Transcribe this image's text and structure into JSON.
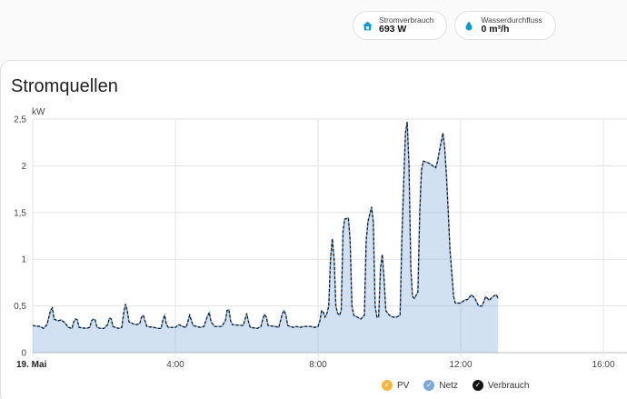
{
  "badges": [
    {
      "name": "Stromverbrauch",
      "value": "693 W",
      "icon": "home-icon",
      "color": "#0d9bd8"
    },
    {
      "name": "Wasserdurchfluss",
      "value": "0 m³/h",
      "icon": "water-drop-icon",
      "color": "#0d9bd8"
    }
  ],
  "card": {
    "title": "Stromquellen"
  },
  "legend": [
    {
      "label": "PV",
      "color": "#f5b83d"
    },
    {
      "label": "Netz",
      "color": "#7ca8d6"
    },
    {
      "label": "Verbrauch",
      "color": "#141414"
    }
  ],
  "chart_data": {
    "type": "area",
    "ylabel": "kW",
    "ylim": [
      0,
      2.5
    ],
    "xlim": [
      0,
      16.5
    ],
    "y_ticks": [
      {
        "v": 0,
        "label": "0"
      },
      {
        "v": 0.5,
        "label": "0,5"
      },
      {
        "v": 1,
        "label": "1"
      },
      {
        "v": 1.5,
        "label": "1,5"
      },
      {
        "v": 2,
        "label": "2"
      },
      {
        "v": 2.5,
        "label": "2,5"
      }
    ],
    "x_ticks": [
      {
        "v": 0,
        "label": "19. Mai",
        "bold": true
      },
      {
        "v": 4,
        "label": "4:00",
        "bold": false
      },
      {
        "v": 8,
        "label": "8:00",
        "bold": false
      },
      {
        "v": 12,
        "label": "12:00",
        "bold": false
      },
      {
        "v": 16,
        "label": "16:00",
        "bold": false
      }
    ],
    "colors": {
      "netz": "#7ca8d6",
      "verbrauch": "#141414"
    },
    "series": [
      {
        "name": "Netz",
        "points": [
          [
            0,
            0.29
          ],
          [
            0.2,
            0.28
          ],
          [
            0.3,
            0.26
          ],
          [
            0.4,
            0.3
          ],
          [
            0.5,
            0.45
          ],
          [
            0.55,
            0.48
          ],
          [
            0.6,
            0.36
          ],
          [
            0.7,
            0.34
          ],
          [
            0.8,
            0.35
          ],
          [
            0.9,
            0.32
          ],
          [
            1.0,
            0.27
          ],
          [
            1.1,
            0.26
          ],
          [
            1.15,
            0.33
          ],
          [
            1.2,
            0.36
          ],
          [
            1.25,
            0.35
          ],
          [
            1.3,
            0.27
          ],
          [
            1.5,
            0.26
          ],
          [
            1.6,
            0.27
          ],
          [
            1.65,
            0.34
          ],
          [
            1.7,
            0.36
          ],
          [
            1.75,
            0.35
          ],
          [
            1.8,
            0.27
          ],
          [
            1.9,
            0.26
          ],
          [
            2.0,
            0.26
          ],
          [
            2.1,
            0.3
          ],
          [
            2.15,
            0.37
          ],
          [
            2.2,
            0.36
          ],
          [
            2.25,
            0.28
          ],
          [
            2.4,
            0.26
          ],
          [
            2.5,
            0.27
          ],
          [
            2.55,
            0.42
          ],
          [
            2.6,
            0.52
          ],
          [
            2.65,
            0.45
          ],
          [
            2.7,
            0.33
          ],
          [
            2.8,
            0.31
          ],
          [
            2.9,
            0.3
          ],
          [
            3.0,
            0.31
          ],
          [
            3.05,
            0.38
          ],
          [
            3.1,
            0.4
          ],
          [
            3.15,
            0.34
          ],
          [
            3.2,
            0.28
          ],
          [
            3.4,
            0.27
          ],
          [
            3.5,
            0.26
          ],
          [
            3.6,
            0.26
          ],
          [
            3.65,
            0.35
          ],
          [
            3.7,
            0.4
          ],
          [
            3.75,
            0.3
          ],
          [
            3.8,
            0.27
          ],
          [
            3.9,
            0.27
          ],
          [
            4.0,
            0.27
          ],
          [
            4.1,
            0.3
          ],
          [
            4.2,
            0.28
          ],
          [
            4.3,
            0.27
          ],
          [
            4.35,
            0.33
          ],
          [
            4.4,
            0.4
          ],
          [
            4.45,
            0.34
          ],
          [
            4.5,
            0.29
          ],
          [
            4.7,
            0.27
          ],
          [
            4.8,
            0.28
          ],
          [
            4.9,
            0.39
          ],
          [
            4.95,
            0.43
          ],
          [
            5.0,
            0.33
          ],
          [
            5.1,
            0.28
          ],
          [
            5.3,
            0.28
          ],
          [
            5.4,
            0.34
          ],
          [
            5.45,
            0.45
          ],
          [
            5.5,
            0.46
          ],
          [
            5.55,
            0.34
          ],
          [
            5.6,
            0.3
          ],
          [
            5.9,
            0.29
          ],
          [
            5.95,
            0.35
          ],
          [
            6.0,
            0.42
          ],
          [
            6.05,
            0.33
          ],
          [
            6.1,
            0.27
          ],
          [
            6.3,
            0.26
          ],
          [
            6.4,
            0.28
          ],
          [
            6.45,
            0.36
          ],
          [
            6.5,
            0.41
          ],
          [
            6.55,
            0.38
          ],
          [
            6.6,
            0.29
          ],
          [
            6.8,
            0.28
          ],
          [
            6.9,
            0.27
          ],
          [
            7.0,
            0.42
          ],
          [
            7.05,
            0.45
          ],
          [
            7.1,
            0.4
          ],
          [
            7.15,
            0.29
          ],
          [
            7.3,
            0.27
          ],
          [
            7.4,
            0.28
          ],
          [
            7.5,
            0.27
          ],
          [
            7.6,
            0.28
          ],
          [
            7.7,
            0.28
          ],
          [
            7.8,
            0.28
          ],
          [
            7.9,
            0.27
          ],
          [
            8.0,
            0.28
          ],
          [
            8.05,
            0.34
          ],
          [
            8.1,
            0.45
          ],
          [
            8.15,
            0.43
          ],
          [
            8.2,
            0.38
          ],
          [
            8.25,
            0.42
          ],
          [
            8.3,
            0.5
          ],
          [
            8.35,
            1.0
          ],
          [
            8.4,
            1.22
          ],
          [
            8.45,
            1.0
          ],
          [
            8.5,
            0.5
          ],
          [
            8.55,
            0.42
          ],
          [
            8.6,
            0.4
          ],
          [
            8.65,
            0.45
          ],
          [
            8.7,
            1.3
          ],
          [
            8.75,
            1.43
          ],
          [
            8.85,
            1.44
          ],
          [
            8.9,
            1.2
          ],
          [
            8.95,
            0.5
          ],
          [
            9.0,
            0.4
          ],
          [
            9.1,
            0.38
          ],
          [
            9.2,
            0.36
          ],
          [
            9.3,
            0.4
          ],
          [
            9.35,
            1.2
          ],
          [
            9.4,
            1.4
          ],
          [
            9.5,
            1.56
          ],
          [
            9.55,
            1.4
          ],
          [
            9.6,
            0.5
          ],
          [
            9.65,
            0.38
          ],
          [
            9.7,
            0.38
          ],
          [
            9.75,
            0.9
          ],
          [
            9.8,
            1.05
          ],
          [
            9.85,
            0.8
          ],
          [
            9.9,
            0.45
          ],
          [
            10.0,
            0.4
          ],
          [
            10.1,
            0.38
          ],
          [
            10.2,
            0.38
          ],
          [
            10.3,
            0.4
          ],
          [
            10.35,
            1.2
          ],
          [
            10.4,
            1.8
          ],
          [
            10.45,
            2.35
          ],
          [
            10.5,
            2.47
          ],
          [
            10.55,
            2.0
          ],
          [
            10.6,
            0.9
          ],
          [
            10.65,
            0.6
          ],
          [
            10.7,
            0.58
          ],
          [
            10.8,
            0.65
          ],
          [
            10.85,
            1.5
          ],
          [
            10.9,
            1.95
          ],
          [
            10.95,
            2.05
          ],
          [
            11.1,
            2.03
          ],
          [
            11.3,
            1.98
          ],
          [
            11.35,
            2.05
          ],
          [
            11.4,
            2.15
          ],
          [
            11.45,
            2.25
          ],
          [
            11.5,
            2.35
          ],
          [
            11.55,
            2.2
          ],
          [
            11.6,
            1.9
          ],
          [
            11.65,
            1.5
          ],
          [
            11.7,
            1.1
          ],
          [
            11.75,
            0.85
          ],
          [
            11.8,
            0.6
          ],
          [
            11.85,
            0.53
          ],
          [
            12.0,
            0.53
          ],
          [
            12.1,
            0.56
          ],
          [
            12.2,
            0.57
          ],
          [
            12.3,
            0.62
          ],
          [
            12.4,
            0.58
          ],
          [
            12.5,
            0.5
          ],
          [
            12.6,
            0.5
          ],
          [
            12.7,
            0.6
          ],
          [
            12.8,
            0.56
          ],
          [
            12.9,
            0.6
          ],
          [
            13.0,
            0.62
          ],
          [
            13.05,
            0.58
          ]
        ]
      }
    ]
  }
}
